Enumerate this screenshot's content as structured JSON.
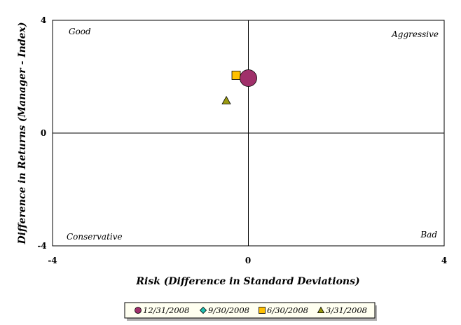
{
  "chart_data": {
    "type": "scatter",
    "xlabel": "Risk (Difference in Standard Deviations)",
    "ylabel": "Difference in Returns (Manager - Index)",
    "xlim": [
      -4,
      4
    ],
    "ylim": [
      -4,
      4
    ],
    "x_ticks": [
      "-4",
      "0",
      "4"
    ],
    "y_ticks": [
      "4",
      "0",
      "-4"
    ],
    "quadrant_labels": {
      "top_left": "Good",
      "top_right": "Aggressive",
      "bottom_left": "Conservative",
      "bottom_right": "Bad"
    },
    "legend_position": "bottom",
    "series": [
      {
        "name": "12/31/2008",
        "marker": "circle",
        "color": "#a0306a",
        "x": 0.0,
        "y": 1.95
      },
      {
        "name": "9/30/2008",
        "marker": "diamond",
        "color": "#20c0b0",
        "x": null,
        "y": null
      },
      {
        "name": "6/30/2008",
        "marker": "square",
        "color": "#ffc000",
        "x": -0.25,
        "y": 2.05
      },
      {
        "name": "3/31/2008",
        "marker": "triangle",
        "color": "#9a9a10",
        "x": -0.45,
        "y": 1.15
      }
    ]
  }
}
